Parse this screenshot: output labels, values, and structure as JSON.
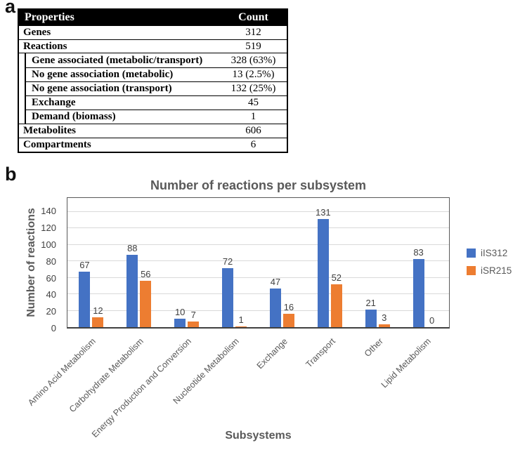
{
  "panels": {
    "a": "a",
    "b": "b"
  },
  "table": {
    "header": {
      "property": "Properties",
      "count": "Count"
    },
    "rows": [
      {
        "label": "Genes",
        "count": "312",
        "sub": false
      },
      {
        "label": "Reactions",
        "count": "519",
        "sub": false
      },
      {
        "label": "Gene associated (metabolic/transport)",
        "count": "328 (63%)",
        "sub": true
      },
      {
        "label": "No gene association (metabolic)",
        "count": "13 (2.5%)",
        "sub": true
      },
      {
        "label": "No gene association (transport)",
        "count": "132 (25%)",
        "sub": true
      },
      {
        "label": "Exchange",
        "count": "45",
        "sub": true
      },
      {
        "label": "Demand (biomass)",
        "count": "1",
        "sub": true
      },
      {
        "label": "Metabolites",
        "count": "606",
        "sub": false
      },
      {
        "label": "Compartments",
        "count": "6",
        "sub": false
      }
    ]
  },
  "chart_data": {
    "type": "bar",
    "title": "Number of reactions per subsystem",
    "xlabel": "Subsystems",
    "ylabel": "Number of reactions",
    "categories": [
      "Amino Acid Metabolism",
      "Carbohydrate Metabolism",
      "Energy Production and Conversion",
      "Nucleotide Metabolism",
      "Exchange",
      "Transport",
      "Other",
      "Lipid Metabolism"
    ],
    "series": [
      {
        "name": "iIS312",
        "color": "#4472C4",
        "values": [
          67,
          88,
          10,
          72,
          47,
          131,
          21,
          83
        ]
      },
      {
        "name": "iSR215",
        "color": "#ED7D31",
        "values": [
          12,
          56,
          7,
          1,
          16,
          52,
          3,
          0
        ]
      }
    ],
    "ylim": [
      0,
      157
    ],
    "yticks": [
      0,
      20,
      40,
      60,
      80,
      100,
      120,
      140
    ],
    "grid": true,
    "legend_position": "right",
    "gridline_color": "#d9d9d9",
    "label_color": "#404040",
    "axis_text_color": "#595959"
  }
}
